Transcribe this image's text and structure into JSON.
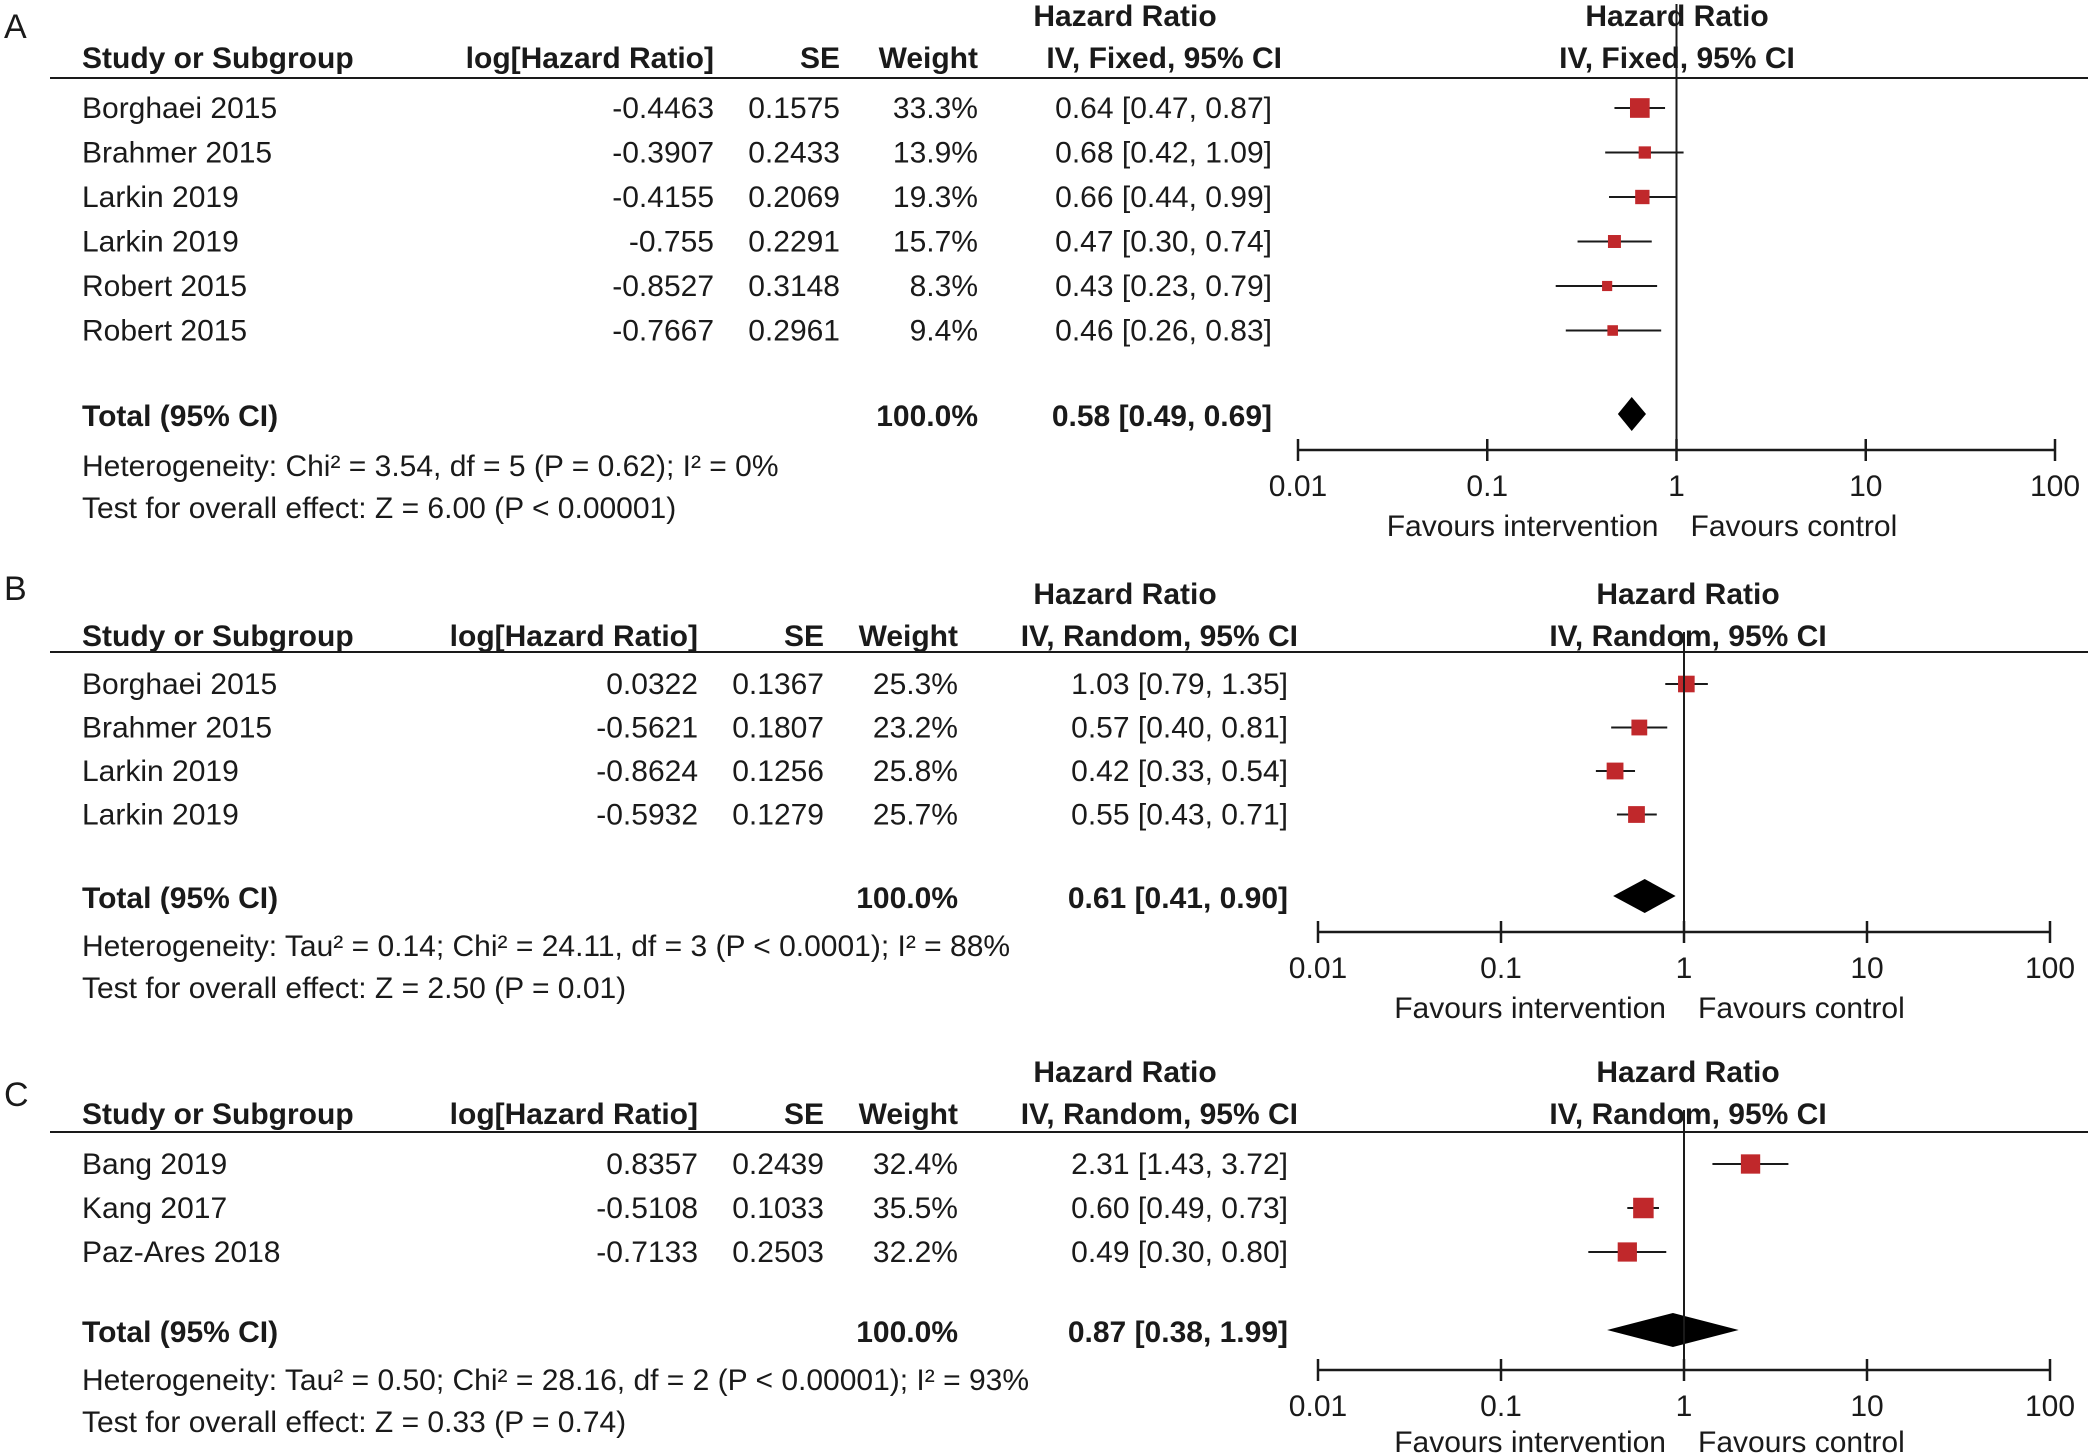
{
  "panels": [
    {
      "letter": "A",
      "headers": {
        "study": "Study or Subgroup",
        "loghr": "log[Hazard Ratio]",
        "se": "SE",
        "weight": "Weight",
        "hr_title": "Hazard Ratio",
        "hr_method": "IV, Fixed, 95% CI",
        "plot_title": "Hazard Ratio",
        "plot_method": "IV, Fixed, 95% CI"
      },
      "rows": [
        {
          "study": "Borghaei 2015",
          "loghr": "-0.4463",
          "se": "0.1575",
          "weight": "33.3%",
          "ci_text": "0.64 [0.47, 0.87]"
        },
        {
          "study": "Brahmer 2015",
          "loghr": "-0.3907",
          "se": "0.2433",
          "weight": "13.9%",
          "ci_text": "0.68 [0.42, 1.09]"
        },
        {
          "study": "Larkin 2019",
          "loghr": "-0.4155",
          "se": "0.2069",
          "weight": "19.3%",
          "ci_text": "0.66 [0.44, 0.99]"
        },
        {
          "study": "Larkin 2019",
          "loghr": "-0.755",
          "se": "0.2291",
          "weight": "15.7%",
          "ci_text": "0.47 [0.30, 0.74]"
        },
        {
          "study": "Robert 2015",
          "loghr": "-0.8527",
          "se": "0.3148",
          "weight": "8.3%",
          "ci_text": "0.43 [0.23, 0.79]"
        },
        {
          "study": "Robert 2015",
          "loghr": "-0.7667",
          "se": "0.2961",
          "weight": "9.4%",
          "ci_text": "0.46 [0.26, 0.83]"
        }
      ],
      "total": {
        "label": "Total (95% CI)",
        "weight": "100.0%",
        "ci_text": "0.58 [0.49, 0.69]"
      },
      "heterogeneity": "Heterogeneity: Chi² = 3.54, df = 5 (P = 0.62); I² = 0%",
      "overall": "Test for overall effect: Z = 6.00 (P < 0.00001)",
      "axis": {
        "ticks": [
          "0.01",
          "0.1",
          "1",
          "10",
          "100"
        ],
        "left_label": "Favours intervention",
        "right_label": "Favours control"
      }
    },
    {
      "letter": "B",
      "headers": {
        "study": "Study or Subgroup",
        "loghr": "log[Hazard Ratio]",
        "se": "SE",
        "weight": "Weight",
        "hr_title": "Hazard Ratio",
        "hr_method": "IV, Random, 95% CI",
        "plot_title": "Hazard Ratio",
        "plot_method": "IV, Random, 95% CI"
      },
      "rows": [
        {
          "study": "Borghaei 2015",
          "loghr": "0.0322",
          "se": "0.1367",
          "weight": "25.3%",
          "ci_text": "1.03 [0.79, 1.35]"
        },
        {
          "study": "Brahmer 2015",
          "loghr": "-0.5621",
          "se": "0.1807",
          "weight": "23.2%",
          "ci_text": "0.57 [0.40, 0.81]"
        },
        {
          "study": "Larkin 2019",
          "loghr": "-0.8624",
          "se": "0.1256",
          "weight": "25.8%",
          "ci_text": "0.42 [0.33, 0.54]"
        },
        {
          "study": "Larkin 2019",
          "loghr": "-0.5932",
          "se": "0.1279",
          "weight": "25.7%",
          "ci_text": "0.55 [0.43, 0.71]"
        }
      ],
      "total": {
        "label": "Total (95% CI)",
        "weight": "100.0%",
        "ci_text": "0.61 [0.41, 0.90]"
      },
      "heterogeneity": "Heterogeneity: Tau² = 0.14; Chi² = 24.11, df = 3 (P < 0.0001); I² = 88%",
      "overall": "Test for overall effect: Z = 2.50 (P = 0.01)",
      "axis": {
        "ticks": [
          "0.01",
          "0.1",
          "1",
          "10",
          "100"
        ],
        "left_label": "Favours intervention",
        "right_label": "Favours control"
      }
    },
    {
      "letter": "C",
      "headers": {
        "study": "Study or Subgroup",
        "loghr": "log[Hazard Ratio]",
        "se": "SE",
        "weight": "Weight",
        "hr_title": "Hazard Ratio",
        "hr_method": "IV, Random, 95% CI",
        "plot_title": "Hazard Ratio",
        "plot_method": "IV, Random, 95% CI"
      },
      "rows": [
        {
          "study": "Bang 2019",
          "loghr": "0.8357",
          "se": "0.2439",
          "weight": "32.4%",
          "ci_text": "2.31 [1.43, 3.72]"
        },
        {
          "study": "Kang 2017",
          "loghr": "-0.5108",
          "se": "0.1033",
          "weight": "35.5%",
          "ci_text": "0.60 [0.49, 0.73]"
        },
        {
          "study": "Paz-Ares 2018",
          "loghr": "-0.7133",
          "se": "0.2503",
          "weight": "32.2%",
          "ci_text": "0.49 [0.30, 0.80]"
        }
      ],
      "total": {
        "label": "Total (95% CI)",
        "weight": "100.0%",
        "ci_text": "0.87 [0.38, 1.99]"
      },
      "heterogeneity": "Heterogeneity: Tau² = 0.50; Chi² = 28.16, df = 2 (P < 0.00001); I² = 93%",
      "overall": "Test for overall effect: Z = 0.33 (P = 0.74)",
      "axis": {
        "ticks": [
          "0.01",
          "0.1",
          "1",
          "10",
          "100"
        ],
        "left_label": "Favours intervention",
        "right_label": "Favours control"
      }
    }
  ],
  "colors": {
    "marker": "#c0282b",
    "diamond": "#000000",
    "line": "#1a1a1a"
  },
  "chart_data": [
    {
      "type": "forest",
      "x_scale": "log",
      "x_range": [
        0.01,
        100
      ],
      "x_ticks": [
        0.01,
        0.1,
        1,
        10,
        100
      ],
      "studies": [
        {
          "label": "Borghaei 2015",
          "hr": 0.64,
          "lo": 0.47,
          "hi": 0.87,
          "weight": 33.3
        },
        {
          "label": "Brahmer 2015",
          "hr": 0.68,
          "lo": 0.42,
          "hi": 1.09,
          "weight": 13.9
        },
        {
          "label": "Larkin 2019",
          "hr": 0.66,
          "lo": 0.44,
          "hi": 0.99,
          "weight": 19.3
        },
        {
          "label": "Larkin 2019",
          "hr": 0.47,
          "lo": 0.3,
          "hi": 0.74,
          "weight": 15.7
        },
        {
          "label": "Robert 2015",
          "hr": 0.43,
          "lo": 0.23,
          "hi": 0.79,
          "weight": 8.3
        },
        {
          "label": "Robert 2015",
          "hr": 0.46,
          "lo": 0.26,
          "hi": 0.83,
          "weight": 9.4
        }
      ],
      "total": {
        "hr": 0.58,
        "lo": 0.49,
        "hi": 0.69
      }
    },
    {
      "type": "forest",
      "x_scale": "log",
      "x_range": [
        0.01,
        100
      ],
      "x_ticks": [
        0.01,
        0.1,
        1,
        10,
        100
      ],
      "studies": [
        {
          "label": "Borghaei 2015",
          "hr": 1.03,
          "lo": 0.79,
          "hi": 1.35,
          "weight": 25.3
        },
        {
          "label": "Brahmer 2015",
          "hr": 0.57,
          "lo": 0.4,
          "hi": 0.81,
          "weight": 23.2
        },
        {
          "label": "Larkin 2019",
          "hr": 0.42,
          "lo": 0.33,
          "hi": 0.54,
          "weight": 25.8
        },
        {
          "label": "Larkin 2019",
          "hr": 0.55,
          "lo": 0.43,
          "hi": 0.71,
          "weight": 25.7
        }
      ],
      "total": {
        "hr": 0.61,
        "lo": 0.41,
        "hi": 0.9
      }
    },
    {
      "type": "forest",
      "x_scale": "log",
      "x_range": [
        0.01,
        100
      ],
      "x_ticks": [
        0.01,
        0.1,
        1,
        10,
        100
      ],
      "studies": [
        {
          "label": "Bang 2019",
          "hr": 2.31,
          "lo": 1.43,
          "hi": 3.72,
          "weight": 32.4
        },
        {
          "label": "Kang 2017",
          "hr": 0.6,
          "lo": 0.49,
          "hi": 0.73,
          "weight": 35.5
        },
        {
          "label": "Paz-Ares 2018",
          "hr": 0.49,
          "lo": 0.3,
          "hi": 0.8,
          "weight": 32.2
        }
      ],
      "total": {
        "hr": 0.87,
        "lo": 0.38,
        "hi": 1.99
      }
    }
  ]
}
